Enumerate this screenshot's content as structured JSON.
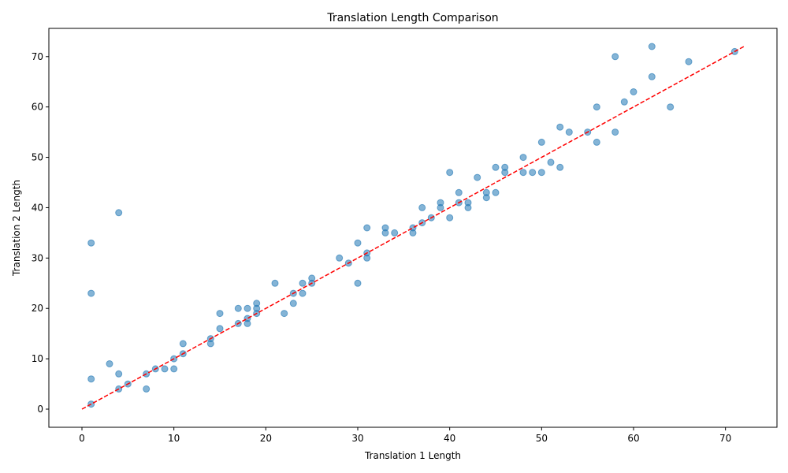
{
  "chart_data": {
    "type": "scatter",
    "title": "Translation Length Comparison",
    "xlabel": "Translation 1 Length",
    "ylabel": "Translation 2 Length",
    "xlim": [
      -3.6,
      75.6
    ],
    "ylim": [
      -3.6,
      75.6
    ],
    "xticks": [
      0,
      10,
      20,
      30,
      40,
      50,
      60,
      70
    ],
    "yticks": [
      0,
      10,
      20,
      30,
      40,
      50,
      60,
      70
    ],
    "grid": false,
    "point_color": "#1f77b4",
    "reference_line": {
      "from": [
        0,
        0
      ],
      "to": [
        72,
        72
      ],
      "color": "#ff0000",
      "style": "dashed"
    },
    "points": [
      [
        1,
        1
      ],
      [
        1,
        6
      ],
      [
        1,
        23
      ],
      [
        1,
        33
      ],
      [
        3,
        9
      ],
      [
        4,
        4
      ],
      [
        4,
        7
      ],
      [
        4,
        39
      ],
      [
        5,
        5
      ],
      [
        7,
        4
      ],
      [
        7,
        7
      ],
      [
        8,
        8
      ],
      [
        9,
        8
      ],
      [
        10,
        8
      ],
      [
        10,
        10
      ],
      [
        11,
        11
      ],
      [
        11,
        13
      ],
      [
        14,
        13
      ],
      [
        14,
        14
      ],
      [
        15,
        16
      ],
      [
        15,
        19
      ],
      [
        17,
        17
      ],
      [
        17,
        20
      ],
      [
        18,
        17
      ],
      [
        18,
        18
      ],
      [
        18,
        20
      ],
      [
        19,
        19
      ],
      [
        19,
        20
      ],
      [
        19,
        21
      ],
      [
        21,
        25
      ],
      [
        22,
        19
      ],
      [
        23,
        21
      ],
      [
        23,
        23
      ],
      [
        24,
        23
      ],
      [
        24,
        25
      ],
      [
        25,
        25
      ],
      [
        25,
        26
      ],
      [
        28,
        30
      ],
      [
        29,
        29
      ],
      [
        30,
        25
      ],
      [
        30,
        33
      ],
      [
        31,
        30
      ],
      [
        31,
        31
      ],
      [
        31,
        36
      ],
      [
        33,
        35
      ],
      [
        33,
        36
      ],
      [
        34,
        35
      ],
      [
        36,
        35
      ],
      [
        36,
        36
      ],
      [
        37,
        37
      ],
      [
        37,
        40
      ],
      [
        38,
        38
      ],
      [
        39,
        40
      ],
      [
        39,
        41
      ],
      [
        40,
        38
      ],
      [
        40,
        47
      ],
      [
        41,
        41
      ],
      [
        41,
        43
      ],
      [
        42,
        40
      ],
      [
        42,
        41
      ],
      [
        43,
        46
      ],
      [
        44,
        42
      ],
      [
        44,
        43
      ],
      [
        45,
        43
      ],
      [
        45,
        48
      ],
      [
        46,
        47
      ],
      [
        46,
        48
      ],
      [
        48,
        47
      ],
      [
        48,
        50
      ],
      [
        49,
        47
      ],
      [
        50,
        47
      ],
      [
        50,
        53
      ],
      [
        51,
        49
      ],
      [
        52,
        48
      ],
      [
        52,
        56
      ],
      [
        53,
        55
      ],
      [
        55,
        55
      ],
      [
        56,
        53
      ],
      [
        56,
        60
      ],
      [
        58,
        55
      ],
      [
        58,
        70
      ],
      [
        59,
        61
      ],
      [
        60,
        63
      ],
      [
        62,
        66
      ],
      [
        62,
        72
      ],
      [
        64,
        60
      ],
      [
        66,
        69
      ],
      [
        71,
        71
      ]
    ]
  }
}
